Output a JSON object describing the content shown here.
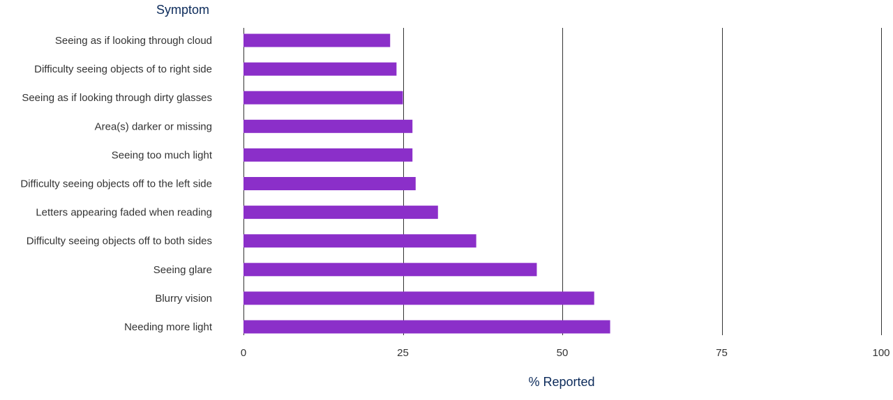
{
  "colors": {
    "bar": "#8b2fc9",
    "grid": "#333333",
    "axis_title": "#0b2a5a",
    "label": "#333333"
  },
  "chart_data": {
    "type": "bar",
    "orientation": "horizontal",
    "ylabel": "Symptom",
    "xlabel": "% Reported",
    "xlim": [
      0,
      100
    ],
    "xticks": [
      0,
      25,
      50,
      75,
      100
    ],
    "grid": true,
    "categories": [
      "Seeing as if looking through cloud",
      "Difficulty seeing objects of to right side",
      "Seeing as if looking through dirty glasses",
      "Area(s) darker or missing",
      "Seeing too much light",
      "Difficulty seeing objects off to the left side",
      "Letters appearing faded when reading",
      "Difficulty seeing objects off to both sides",
      "Seeing glare",
      "Blurry vision",
      "Needing more light"
    ],
    "values": [
      23,
      24,
      25,
      26.5,
      26.5,
      27,
      30.5,
      36.5,
      46,
      55,
      57.5
    ]
  }
}
